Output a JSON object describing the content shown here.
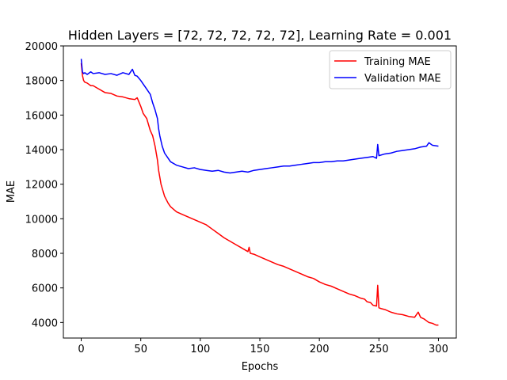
{
  "chart_data": {
    "type": "line",
    "title": "Hidden Layers = [72, 72, 72, 72, 72], Learning Rate = 0.001",
    "xlabel": "Epochs",
    "ylabel": "MAE",
    "xlim": [
      -15,
      315
    ],
    "ylim": [
      3100,
      20000
    ],
    "xticks": [
      0,
      50,
      100,
      150,
      200,
      250,
      300
    ],
    "yticks": [
      4000,
      6000,
      8000,
      10000,
      12000,
      14000,
      16000,
      18000,
      20000
    ],
    "grid": false,
    "legend_position": "top-right",
    "series": [
      {
        "name": "Training MAE",
        "color": "#ff0000",
        "x": [
          0,
          1,
          2,
          3,
          5,
          8,
          10,
          15,
          20,
          25,
          30,
          35,
          40,
          45,
          47,
          50,
          52,
          55,
          58,
          60,
          62,
          64,
          65,
          67,
          70,
          73,
          75,
          80,
          85,
          90,
          95,
          100,
          105,
          110,
          115,
          120,
          125,
          130,
          135,
          140,
          141,
          142,
          145,
          150,
          155,
          160,
          165,
          170,
          175,
          180,
          185,
          190,
          195,
          200,
          205,
          210,
          215,
          220,
          225,
          230,
          235,
          238,
          240,
          243,
          245,
          248,
          249,
          250,
          252,
          255,
          260,
          265,
          270,
          275,
          280,
          283,
          285,
          288,
          290,
          292,
          295,
          298,
          300
        ],
        "y": [
          19000,
          18300,
          18000,
          17900,
          17850,
          17700,
          17700,
          17500,
          17300,
          17250,
          17100,
          17050,
          16950,
          16900,
          17000,
          16500,
          16100,
          15800,
          15100,
          14800,
          14200,
          13400,
          12800,
          12000,
          11300,
          10900,
          10700,
          10400,
          10250,
          10100,
          9950,
          9800,
          9650,
          9400,
          9150,
          8900,
          8700,
          8500,
          8300,
          8100,
          8350,
          8000,
          7950,
          7800,
          7650,
          7500,
          7350,
          7250,
          7100,
          6950,
          6800,
          6650,
          6550,
          6350,
          6200,
          6100,
          5950,
          5800,
          5650,
          5550,
          5400,
          5350,
          5200,
          5150,
          5000,
          4950,
          6150,
          4850,
          4800,
          4750,
          4600,
          4500,
          4450,
          4350,
          4300,
          4600,
          4300,
          4200,
          4100,
          4000,
          3950,
          3850,
          3850
        ]
      },
      {
        "name": "Validation MAE",
        "color": "#0000ff",
        "x": [
          0,
          1,
          2,
          3,
          5,
          8,
          10,
          15,
          20,
          25,
          30,
          35,
          40,
          43,
          45,
          47,
          50,
          52,
          55,
          58,
          60,
          62,
          64,
          65,
          66,
          68,
          70,
          73,
          75,
          80,
          85,
          90,
          95,
          100,
          105,
          110,
          115,
          120,
          125,
          130,
          135,
          140,
          145,
          150,
          155,
          160,
          165,
          170,
          175,
          180,
          185,
          190,
          195,
          200,
          205,
          210,
          215,
          220,
          225,
          230,
          235,
          240,
          245,
          248,
          249,
          250,
          255,
          260,
          265,
          270,
          275,
          280,
          285,
          290,
          292,
          295,
          300
        ],
        "y": [
          19250,
          18500,
          18400,
          18450,
          18350,
          18500,
          18400,
          18450,
          18350,
          18400,
          18300,
          18450,
          18350,
          18650,
          18300,
          18250,
          18000,
          17800,
          17500,
          17200,
          16700,
          16300,
          15800,
          15200,
          14800,
          14200,
          13800,
          13500,
          13300,
          13100,
          13000,
          12900,
          12950,
          12850,
          12800,
          12750,
          12800,
          12700,
          12650,
          12700,
          12750,
          12700,
          12800,
          12850,
          12900,
          12950,
          13000,
          13050,
          13050,
          13100,
          13150,
          13200,
          13250,
          13250,
          13300,
          13300,
          13350,
          13350,
          13400,
          13450,
          13500,
          13550,
          13600,
          13500,
          14300,
          13650,
          13750,
          13800,
          13900,
          13950,
          14000,
          14050,
          14150,
          14200,
          14400,
          14250,
          14200
        ]
      }
    ]
  }
}
